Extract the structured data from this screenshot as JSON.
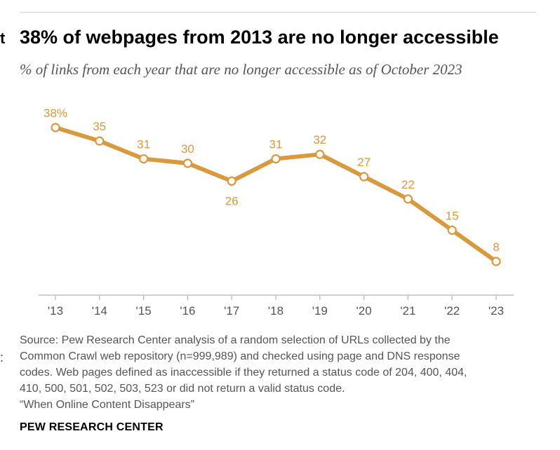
{
  "header": {
    "edge_fragment": "t",
    "edge_colon": ":"
  },
  "chart_data": {
    "type": "line",
    "title": "38% of webpages from 2013 are no longer accessible",
    "subtitle": "% of links from each year that are no longer accessible as of October 2023",
    "categories": [
      "'13",
      "'14",
      "'15",
      "'16",
      "'17",
      "'18",
      "'19",
      "'20",
      "'21",
      "'22",
      "'23"
    ],
    "series": [
      {
        "name": "No longer accessible",
        "values": [
          38,
          35,
          31,
          30,
          26,
          31,
          32,
          27,
          22,
          15,
          8
        ]
      }
    ],
    "data_labels": [
      "38%",
      "35",
      "31",
      "30",
      "26",
      "31",
      "32",
      "27",
      "22",
      "15",
      "8"
    ],
    "label_below": [
      false,
      false,
      false,
      false,
      true,
      false,
      false,
      false,
      false,
      false,
      false
    ],
    "xlabel": "",
    "ylabel": "",
    "ylim": [
      0,
      40
    ],
    "grid": false,
    "line_color": "#d9993f"
  },
  "source": {
    "lines": [
      "Source: Pew Research Center analysis of a random selection of URLs collected by the",
      "Common Crawl web repository (n=999,989) and checked using page and DNS response",
      "codes. Web pages defined as inaccessible if they returned a status code of 204, 400, 404,",
      "410, 500, 501, 502, 503, 523 or did not return a valid status code.",
      "“When Online Content Disappears”"
    ]
  },
  "footer": {
    "brand": "PEW RESEARCH CENTER"
  }
}
